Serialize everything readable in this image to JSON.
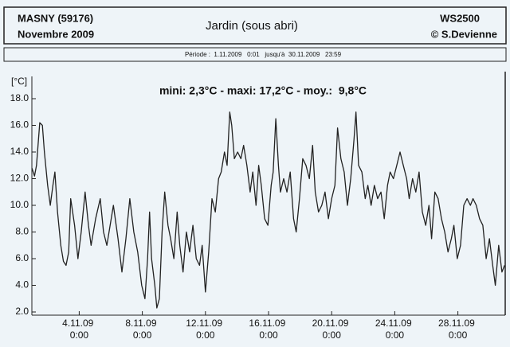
{
  "chart_data": {
    "type": "line",
    "station": "MASNY (59176)",
    "month": "Novembre 2009",
    "title": "Jardin (sous abri)",
    "device": "WS2500",
    "author": "© S.Devienne",
    "period": "Période :  1.11.2009   0:01   jusqu'à  30.11.2009   23:59",
    "ylabel": "[°C]",
    "annotation": "mini: 2,3°C - maxi: 17,2°C - moy.:  9,8°C",
    "color": "#222222",
    "xlim": [
      0,
      720
    ],
    "ylim": [
      2,
      18.5
    ],
    "yticks": [
      {
        "value": 2,
        "label": "2.0"
      },
      {
        "value": 4,
        "label": "4.0"
      },
      {
        "value": 6,
        "label": "6.0"
      },
      {
        "value": 8,
        "label": "8.0"
      },
      {
        "value": 10,
        "label": "10.0"
      },
      {
        "value": 12,
        "label": "12.0"
      },
      {
        "value": 14,
        "label": "14.0"
      },
      {
        "value": 16,
        "label": "16.0"
      },
      {
        "value": 18,
        "label": "18.0"
      }
    ],
    "xticks": [
      {
        "value": 72,
        "label": "4.11.09 0:00"
      },
      {
        "value": 168,
        "label": "8.11.09 0:00"
      },
      {
        "value": 264,
        "label": "12.11.09 0:00"
      },
      {
        "value": 360,
        "label": "16.11.09 0:00"
      },
      {
        "value": 456,
        "label": "20.11.09 0:00"
      },
      {
        "value": 552,
        "label": "24.11.09 0:00"
      },
      {
        "value": 648,
        "label": "28.11.09 0:00"
      }
    ],
    "x": [
      0,
      4,
      7,
      12,
      16,
      19,
      24,
      28,
      32,
      35,
      39,
      44,
      48,
      52,
      56,
      59,
      65,
      70,
      75,
      81,
      86,
      90,
      97,
      104,
      109,
      114,
      124,
      131,
      137,
      143,
      149,
      155,
      161,
      167,
      172,
      176,
      179,
      182,
      187,
      190,
      194,
      198,
      202,
      207,
      211,
      216,
      221,
      225,
      230,
      235,
      240,
      245,
      250,
      255,
      259,
      264,
      269,
      274,
      279,
      284,
      288,
      293,
      297,
      301,
      304,
      308,
      313,
      318,
      322,
      327,
      332,
      336,
      341,
      345,
      349,
      354,
      359,
      364,
      367,
      371,
      375,
      378,
      383,
      388,
      393,
      398,
      402,
      407,
      412,
      417,
      422,
      427,
      431,
      436,
      441,
      446,
      451,
      456,
      461,
      465,
      470,
      475,
      480,
      485,
      490,
      493,
      497,
      502,
      507,
      511,
      516,
      521,
      526,
      531,
      536,
      541,
      545,
      550,
      555,
      560,
      565,
      570,
      574,
      579,
      584,
      589,
      594,
      599,
      604,
      608,
      613,
      618,
      623,
      628,
      633,
      638,
      642,
      647,
      652,
      657,
      662,
      667,
      671,
      676,
      681,
      686,
      691,
      696,
      701,
      705,
      710,
      715,
      719
    ],
    "values": [
      12.8,
      12.2,
      13.0,
      16.2,
      16.0,
      14.0,
      11.5,
      10.0,
      11.5,
      12.5,
      9.5,
      7.0,
      5.8,
      5.5,
      6.5,
      10.5,
      8.5,
      6.0,
      8.0,
      11.0,
      8.5,
      7.0,
      9.0,
      10.5,
      8.0,
      7.0,
      10.0,
      7.5,
      5.0,
      7.5,
      10.5,
      8.0,
      6.5,
      4.0,
      3.0,
      6.0,
      9.5,
      6.0,
      4.0,
      2.3,
      3.0,
      8.0,
      11.0,
      8.5,
      7.5,
      6.0,
      9.5,
      7.0,
      5.0,
      8.0,
      6.5,
      8.5,
      6.0,
      5.5,
      7.0,
      3.5,
      6.5,
      10.5,
      9.5,
      12.0,
      12.5,
      14.0,
      13.0,
      17.0,
      16.0,
      13.5,
      14.0,
      13.5,
      14.5,
      13.0,
      11.0,
      12.5,
      10.0,
      13.0,
      11.5,
      9.0,
      8.5,
      11.5,
      12.5,
      16.5,
      13.0,
      11.0,
      12.0,
      11.0,
      12.5,
      9.0,
      8.0,
      10.5,
      13.5,
      13.0,
      12.0,
      14.5,
      11.0,
      9.5,
      10.0,
      11.0,
      9.0,
      10.5,
      11.5,
      15.8,
      13.5,
      12.5,
      10.0,
      12.0,
      15.0,
      17.0,
      13.0,
      12.5,
      10.5,
      11.5,
      10.0,
      11.5,
      10.5,
      11.0,
      9.0,
      11.5,
      12.5,
      12.0,
      13.0,
      14.0,
      13.0,
      12.0,
      10.5,
      12.0,
      11.0,
      12.5,
      9.5,
      8.5,
      10.0,
      7.5,
      11.0,
      10.5,
      9.0,
      8.0,
      6.5,
      7.5,
      8.5,
      6.0,
      7.0,
      10.0,
      10.5,
      10.0,
      10.5,
      10.0,
      9.0,
      8.5,
      6.0,
      7.5,
      5.5,
      4.0,
      7.0,
      5.0,
      5.5
    ]
  }
}
